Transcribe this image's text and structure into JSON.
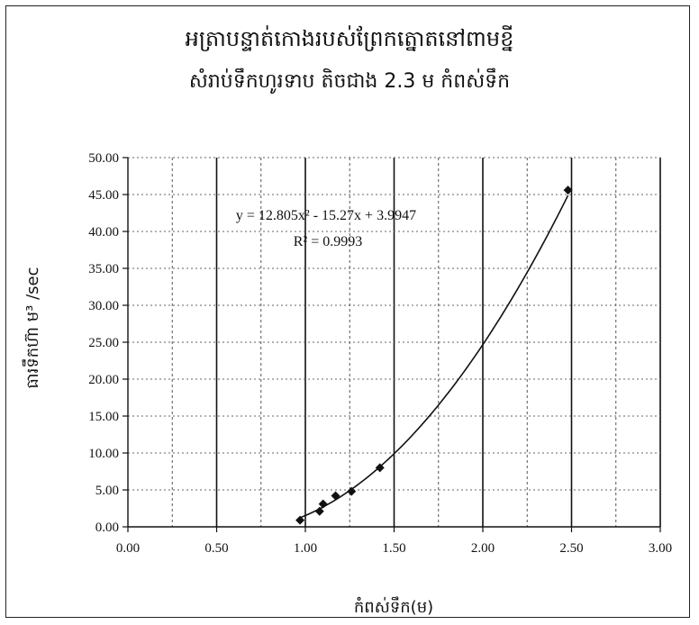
{
  "chart_data": {
    "type": "scatter",
    "title": "អត្រាបន្ទាត់កោងរបស់ព្រែកត្នោតនៅពាមខ្នី",
    "subtitle": "សំរាប់ទឹកហូរទាប តិចជាង 2.3 ម កំពស់ទឹក",
    "xlabel": "កំពស់ទឹក(ម)",
    "ylabel": "ធារទឹកហ៊ា ម³ /sec",
    "xlim": [
      0,
      3
    ],
    "ylim": [
      0,
      50
    ],
    "x_ticks": [
      "0.00",
      "0.50",
      "1.00",
      "1.50",
      "2.00",
      "2.50",
      "3.00"
    ],
    "y_ticks": [
      "0.00",
      "5.00",
      "10.00",
      "15.00",
      "20.00",
      "25.00",
      "30.00",
      "35.00",
      "40.00",
      "45.00",
      "50.00"
    ],
    "grid": true,
    "series": [
      {
        "x": [
          0.97,
          1.08,
          1.1,
          1.17,
          1.26,
          1.42,
          2.48
        ],
        "y": [
          0.9,
          2.1,
          3.1,
          4.2,
          4.8,
          8.0,
          45.6
        ]
      }
    ],
    "trendline": {
      "type": "polynomial",
      "coefficients": [
        12.805,
        -15.27,
        3.9947
      ],
      "x_range": [
        0.96,
        2.48
      ],
      "equation": "y = 12.805x² - 15.27x + 3.9947",
      "r_squared": "R² = 0.9993"
    }
  }
}
